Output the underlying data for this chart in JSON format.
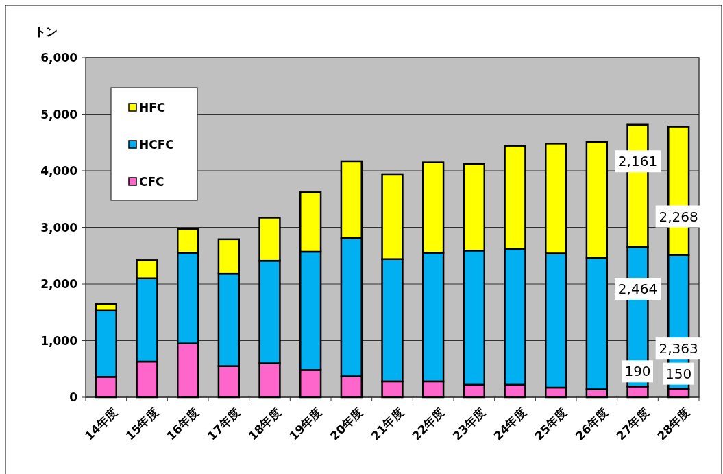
{
  "chart_data": {
    "type": "bar",
    "stacked": true,
    "ylabel": "トン",
    "categories": [
      "14年度",
      "15年度",
      "16年度",
      "17年度",
      "18年度",
      "19年度",
      "20年度",
      "21年度",
      "22年度",
      "23年度",
      "24年度",
      "25年度",
      "26年度",
      "27年度",
      "28年度"
    ],
    "series": [
      {
        "name": "CFC",
        "color": "#ff66cc",
        "values": [
          360,
          630,
          950,
          550,
          600,
          480,
          370,
          280,
          280,
          220,
          220,
          170,
          140,
          190,
          150
        ],
        "value_labels": [
          null,
          null,
          null,
          null,
          null,
          null,
          null,
          null,
          null,
          null,
          null,
          null,
          null,
          "190",
          "150"
        ]
      },
      {
        "name": "HCFC",
        "color": "#00b0f0",
        "values": [
          1170,
          1470,
          1600,
          1630,
          1810,
          2090,
          2440,
          2160,
          2270,
          2370,
          2400,
          2370,
          2320,
          2464,
          2363
        ],
        "value_labels": [
          null,
          null,
          null,
          null,
          null,
          null,
          null,
          null,
          null,
          null,
          null,
          null,
          null,
          "2,464",
          "2,363"
        ]
      },
      {
        "name": "HFC",
        "color": "#ffff00",
        "values": [
          120,
          320,
          420,
          610,
          760,
          1050,
          1360,
          1500,
          1600,
          1530,
          1820,
          1940,
          2050,
          2161,
          2268
        ],
        "value_labels": [
          null,
          null,
          null,
          null,
          null,
          null,
          null,
          null,
          null,
          null,
          null,
          null,
          null,
          "2,161",
          "2,268"
        ]
      }
    ],
    "ylim": [
      0,
      6000
    ],
    "yticks": [
      {
        "value": 0,
        "label": "0"
      },
      {
        "value": 1000,
        "label": "1,000"
      },
      {
        "value": 2000,
        "label": "2,000"
      },
      {
        "value": 3000,
        "label": "3,000"
      },
      {
        "value": 4000,
        "label": "4,000"
      },
      {
        "value": 5000,
        "label": "5,000"
      },
      {
        "value": 6000,
        "label": "6,000"
      }
    ],
    "grid": "y",
    "legend": "top left"
  }
}
